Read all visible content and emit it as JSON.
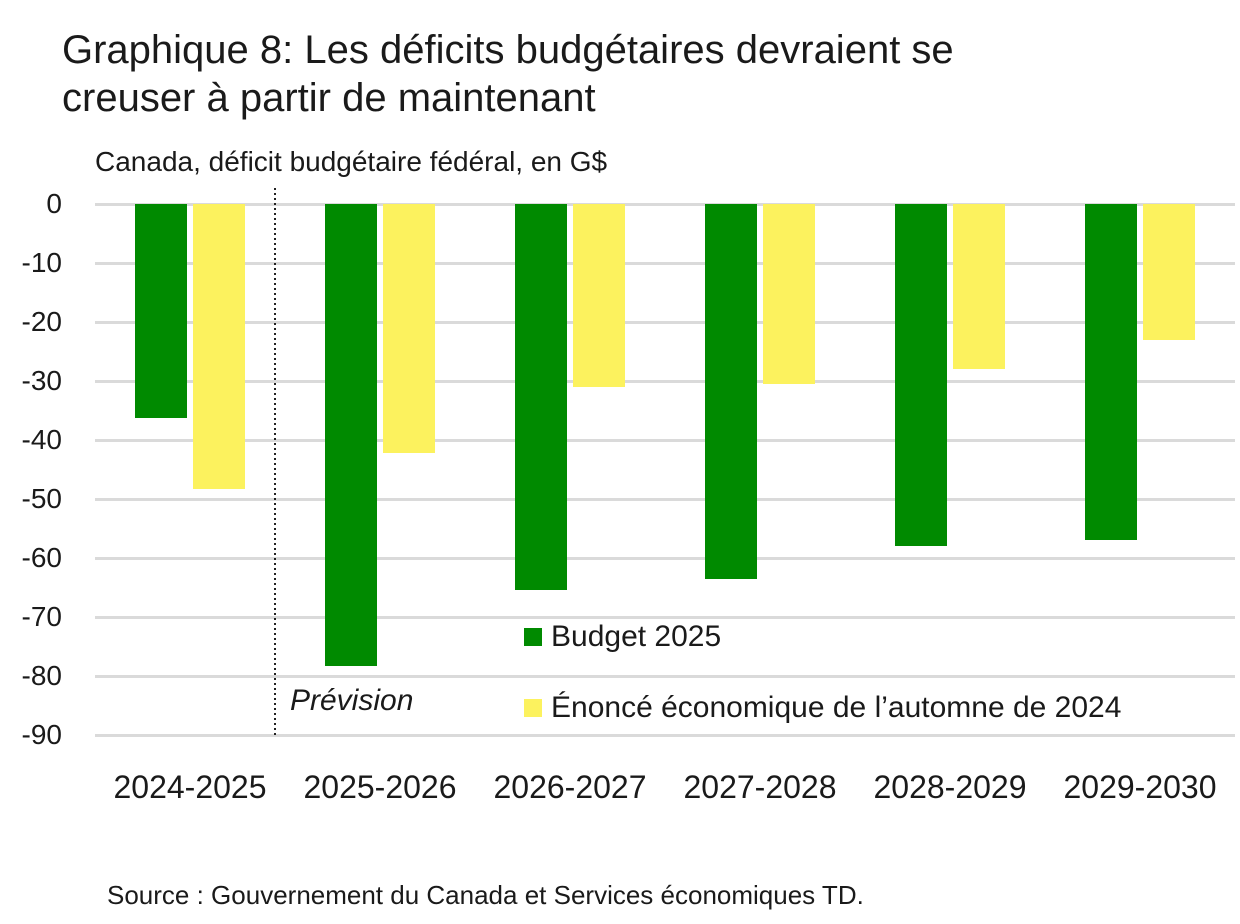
{
  "header": {
    "title": "Graphique 8: Les déficits budgétaires devraient se creuser à partir de maintenant",
    "title_lines": [
      "Graphique 8: Les déficits budgétaires devraient se",
      "creuser à partir de maintenant"
    ],
    "subtitle": "Canada, déficit budgétaire fédéral, en G$"
  },
  "chart_data": {
    "type": "bar",
    "categories": [
      "2024-2025",
      "2025-2026",
      "2026-2027",
      "2027-2028",
      "2028-2029",
      "2029-2030"
    ],
    "series": [
      {
        "name": "Budget 2025",
        "color": "#008A00",
        "values": [
          -36.3,
          -78.3,
          -65.4,
          -63.5,
          -58,
          -57
        ]
      },
      {
        "name": "Énoncé économique de l’automne de 2024",
        "color": "#FCF25E",
        "values": [
          -48.3,
          -42.2,
          -31,
          -30.5,
          -28,
          -23
        ]
      }
    ],
    "title": "Graphique 8: Les déficits budgétaires devraient se creuser à partir de maintenant",
    "subtitle": "Canada, déficit budgétaire fédéral, en G$",
    "xlabel": "",
    "ylabel": "",
    "ylim": [
      -90,
      0
    ],
    "ytick_step": 10,
    "yticks": [
      0,
      -10,
      -20,
      -30,
      -40,
      -50,
      -60,
      -70,
      -80,
      -90
    ],
    "grid": "horizontal",
    "legend_position": "inside-bottom-right",
    "annotations": [
      {
        "text": "Prévision",
        "style": "italic",
        "position": "right-of-divider"
      }
    ],
    "divider": {
      "type": "dotted-vertical",
      "between": [
        "2024-2025",
        "2025-2026"
      ]
    }
  },
  "footer": {
    "source": "Source : Gouvernement du Canada et Services économiques TD."
  },
  "colors": {
    "background": "#FFFFFF",
    "grid": "#DADADA",
    "text": "#1A1A1A",
    "budget_green": "#008A00",
    "fes_yellow": "#FCF25E"
  }
}
